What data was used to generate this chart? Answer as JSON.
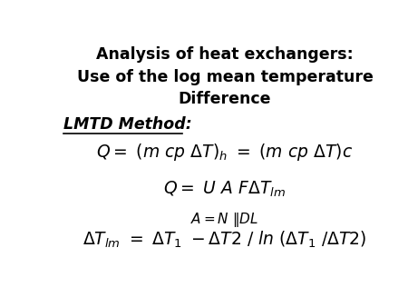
{
  "bg_color": "#ffffff",
  "title_line1": "Analysis of heat exchangers:",
  "title_line2": "Use of the log mean temperature",
  "title_line3": "Difference",
  "lmtd_label": "LMTD Method:",
  "figsize": [
    4.5,
    3.38
  ],
  "dpi": 100
}
